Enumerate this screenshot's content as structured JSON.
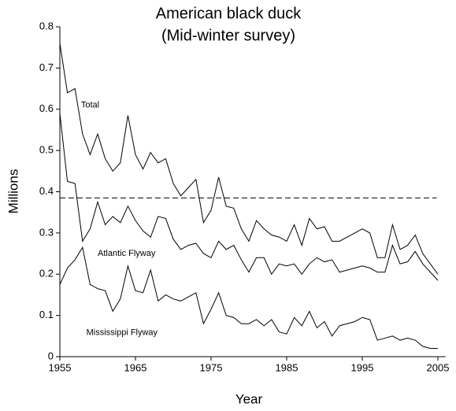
{
  "chart_data": {
    "type": "line",
    "title": [
      "American black duck",
      "(Mid-winter survey)"
    ],
    "x_label": "Year",
    "y_label": "Millions",
    "x": [
      1955,
      1956,
      1957,
      1958,
      1959,
      1960,
      1961,
      1962,
      1963,
      1964,
      1965,
      1966,
      1967,
      1968,
      1969,
      1970,
      1971,
      1972,
      1973,
      1974,
      1975,
      1976,
      1977,
      1978,
      1979,
      1980,
      1981,
      1982,
      1983,
      1984,
      1985,
      1986,
      1987,
      1988,
      1989,
      1990,
      1991,
      1992,
      1993,
      1994,
      1995,
      1996,
      1997,
      1998,
      1999,
      2000,
      2001,
      2002,
      2003,
      2004,
      2005
    ],
    "series": [
      {
        "name": "Total",
        "color": "#000000",
        "values": [
          0.76,
          0.64,
          0.65,
          0.54,
          0.49,
          0.54,
          0.48,
          0.45,
          0.47,
          0.585,
          0.49,
          0.455,
          0.495,
          0.47,
          0.48,
          0.42,
          0.39,
          0.41,
          0.43,
          0.325,
          0.355,
          0.435,
          0.365,
          0.36,
          0.31,
          0.28,
          0.33,
          0.31,
          0.295,
          0.29,
          0.28,
          0.32,
          0.27,
          0.335,
          0.31,
          0.315,
          0.28,
          0.28,
          0.29,
          0.3,
          0.31,
          0.3,
          0.24,
          0.24,
          0.32,
          0.26,
          0.27,
          0.295,
          0.25,
          0.225,
          0.2
        ]
      },
      {
        "name": "Atlantic Flyway",
        "color": "#000000",
        "values": [
          0.59,
          0.425,
          0.42,
          0.28,
          0.31,
          0.375,
          0.32,
          0.34,
          0.325,
          0.365,
          0.33,
          0.305,
          0.29,
          0.34,
          0.335,
          0.285,
          0.26,
          0.27,
          0.275,
          0.25,
          0.24,
          0.28,
          0.26,
          0.27,
          0.235,
          0.205,
          0.24,
          0.24,
          0.2,
          0.225,
          0.22,
          0.225,
          0.2,
          0.225,
          0.24,
          0.23,
          0.235,
          0.205,
          0.21,
          0.215,
          0.22,
          0.215,
          0.205,
          0.205,
          0.27,
          0.225,
          0.23,
          0.255,
          0.225,
          0.205,
          0.185
        ]
      },
      {
        "name": "Mississippi Flyway",
        "color": "#000000",
        "values": [
          0.175,
          0.215,
          0.235,
          0.265,
          0.175,
          0.165,
          0.16,
          0.11,
          0.14,
          0.22,
          0.16,
          0.155,
          0.21,
          0.135,
          0.15,
          0.14,
          0.135,
          0.145,
          0.155,
          0.08,
          0.115,
          0.155,
          0.1,
          0.095,
          0.08,
          0.08,
          0.09,
          0.075,
          0.09,
          0.06,
          0.055,
          0.095,
          0.075,
          0.11,
          0.07,
          0.085,
          0.05,
          0.075,
          0.08,
          0.085,
          0.095,
          0.09,
          0.04,
          0.045,
          0.05,
          0.04,
          0.045,
          0.04,
          0.025,
          0.02,
          0.02
        ]
      }
    ],
    "reference_line": {
      "value": 0.385,
      "style": "dashed"
    },
    "xlim": [
      1955,
      2006
    ],
    "xticks": [
      1955,
      1965,
      1975,
      1985,
      1995,
      2005
    ],
    "ylim": [
      0,
      0.8
    ],
    "yticks": [
      0,
      0.1,
      0.2,
      0.3,
      0.4,
      0.5,
      0.6,
      0.7,
      0.8
    ],
    "grid": false
  }
}
